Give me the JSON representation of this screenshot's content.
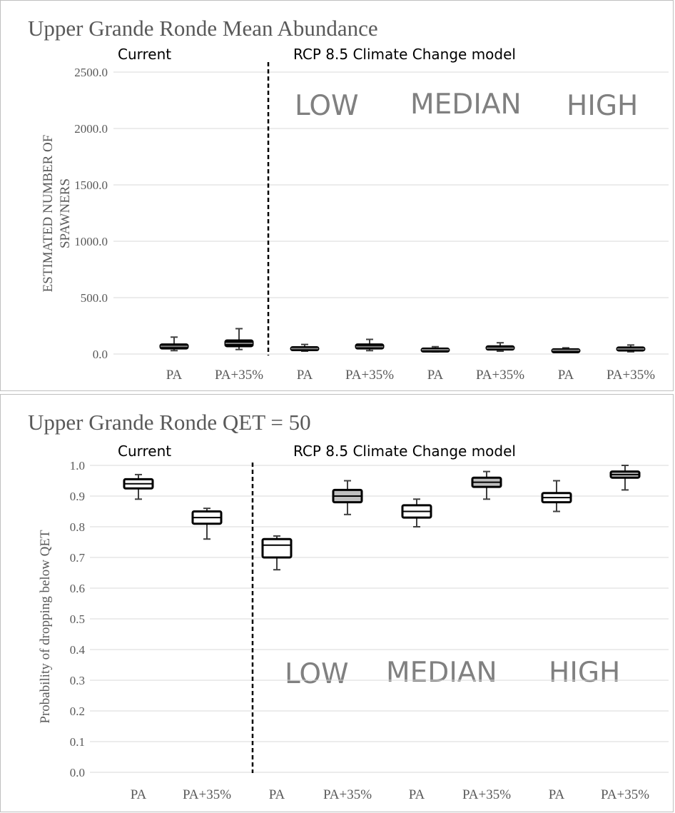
{
  "chart_data": [
    {
      "type": "box",
      "title": "Upper Grande Ronde Mean Abundance",
      "ylabel": "ESTIMATED NUMBER OF SPAWNERS",
      "xlabel": "",
      "ylim": [
        0,
        2500
      ],
      "yticks": [
        "0.0",
        "500.0",
        "1000.0",
        "1500.0",
        "2000.0",
        "2500.0"
      ],
      "ytick_values": [
        0,
        500,
        1000,
        1500,
        2000,
        2500
      ],
      "sections": [
        "Current",
        "RCP 8.5 Climate Change model"
      ],
      "scenario_labels": [
        "LOW",
        "MEDIAN",
        "HIGH"
      ],
      "categories": [
        "PA",
        "PA+35%",
        "PA",
        "PA+35%",
        "PA",
        "PA+35%",
        "PA",
        "PA+35%"
      ],
      "boxes": [
        {
          "min": 30,
          "q1": 50,
          "median": 68,
          "q3": 85,
          "max": 150,
          "fill": "#000000"
        },
        {
          "min": 40,
          "q1": 70,
          "median": 95,
          "q3": 120,
          "max": 225,
          "fill": "#000000"
        },
        {
          "min": 25,
          "q1": 35,
          "median": 48,
          "q3": 60,
          "max": 85,
          "fill": "#000000"
        },
        {
          "min": 30,
          "q1": 50,
          "median": 65,
          "q3": 85,
          "max": 130,
          "fill": "#000000"
        },
        {
          "min": 20,
          "q1": 28,
          "median": 38,
          "q3": 48,
          "max": 65,
          "fill": "#000000"
        },
        {
          "min": 25,
          "q1": 40,
          "median": 52,
          "q3": 68,
          "max": 100,
          "fill": "#000000"
        },
        {
          "min": 15,
          "q1": 25,
          "median": 33,
          "q3": 42,
          "max": 55,
          "fill": "#000000"
        },
        {
          "min": 20,
          "q1": 32,
          "median": 45,
          "q3": 58,
          "max": 80,
          "fill": "#000000"
        }
      ],
      "grid": true
    },
    {
      "type": "box",
      "title": "Upper Grande Ronde QET = 50",
      "ylabel": "Probability of dropping below QET",
      "xlabel": "",
      "ylim": [
        0,
        1
      ],
      "yticks": [
        "0.0",
        "0.1",
        "0.2",
        "0.3",
        "0.4",
        "0.5",
        "0.6",
        "0.7",
        "0.8",
        "0.9",
        "1.0"
      ],
      "ytick_values": [
        0,
        0.1,
        0.2,
        0.3,
        0.4,
        0.5,
        0.6,
        0.7,
        0.8,
        0.9,
        1.0
      ],
      "sections": [
        "Current",
        "RCP 8.5 Climate Change model"
      ],
      "scenario_labels": [
        "LOW",
        "MEDIAN",
        "HIGH"
      ],
      "categories": [
        "PA",
        "PA+35%",
        "PA",
        "PA+35%",
        "PA",
        "PA+35%",
        "PA",
        "PA+35%"
      ],
      "boxes": [
        {
          "min": 0.89,
          "q1": 0.925,
          "median": 0.94,
          "q3": 0.955,
          "max": 0.97,
          "fill": "#ffffff"
        },
        {
          "min": 0.76,
          "q1": 0.81,
          "median": 0.83,
          "q3": 0.85,
          "max": 0.86,
          "fill": "#ffffff"
        },
        {
          "min": 0.66,
          "q1": 0.7,
          "median": 0.74,
          "q3": 0.76,
          "max": 0.77,
          "fill": "#ffffff"
        },
        {
          "min": 0.84,
          "q1": 0.88,
          "median": 0.9,
          "q3": 0.92,
          "max": 0.95,
          "fill": "#bfbfbf"
        },
        {
          "min": 0.8,
          "q1": 0.83,
          "median": 0.85,
          "q3": 0.87,
          "max": 0.89,
          "fill": "#ffffff"
        },
        {
          "min": 0.89,
          "q1": 0.93,
          "median": 0.945,
          "q3": 0.96,
          "max": 0.98,
          "fill": "#bfbfbf"
        },
        {
          "min": 0.85,
          "q1": 0.88,
          "median": 0.895,
          "q3": 0.91,
          "max": 0.95,
          "fill": "#ffffff"
        },
        {
          "min": 0.92,
          "q1": 0.96,
          "median": 0.97,
          "q3": 0.98,
          "max": 1.0,
          "fill": "#bfbfbf"
        }
      ],
      "grid": true
    }
  ]
}
